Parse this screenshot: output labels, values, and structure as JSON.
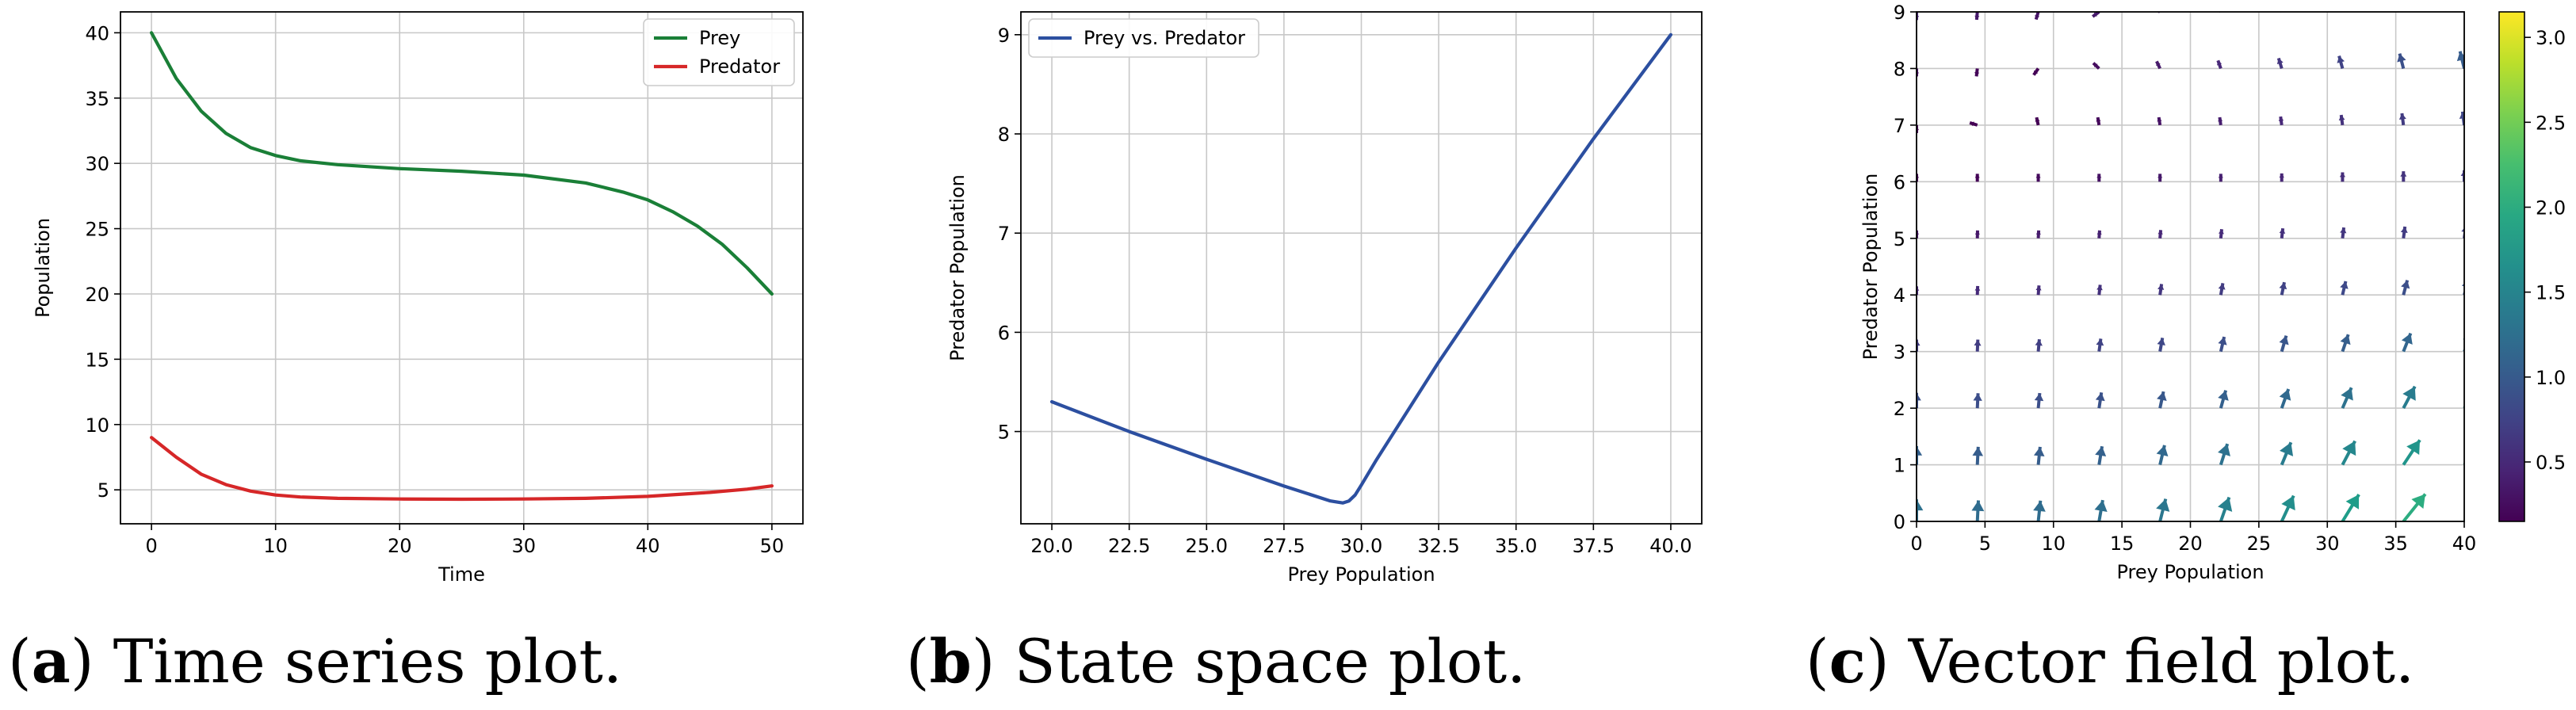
{
  "captions": {
    "a": {
      "label": "a",
      "text": "Time series plot."
    },
    "b": {
      "label": "b",
      "text": "State space plot."
    },
    "c": {
      "label": "c",
      "text": "Vector field plot."
    }
  },
  "colors": {
    "prey": "#1a7f37",
    "predator": "#d62728",
    "phase": "#2c4fa0",
    "grid": "#c8c8c8"
  },
  "chart_data": [
    {
      "id": "a",
      "type": "line",
      "xlabel": "Time",
      "ylabel": "Population",
      "xlim": [
        -2.5,
        52.5
      ],
      "ylim": [
        2.4,
        41.6
      ],
      "xticks": [
        0,
        10,
        20,
        30,
        40,
        50
      ],
      "yticks": [
        5,
        10,
        15,
        20,
        25,
        30,
        35,
        40
      ],
      "grid": true,
      "legend": "top-right",
      "series": [
        {
          "name": "Prey",
          "color": "#1a7f37",
          "x": [
            0,
            2,
            4,
            6,
            8,
            10,
            12,
            15,
            20,
            25,
            30,
            35,
            38,
            40,
            42,
            44,
            46,
            48,
            50
          ],
          "y": [
            40,
            36.5,
            34.0,
            32.3,
            31.2,
            30.6,
            30.2,
            29.9,
            29.6,
            29.4,
            29.1,
            28.5,
            27.8,
            27.2,
            26.3,
            25.2,
            23.8,
            22.0,
            20.0
          ]
        },
        {
          "name": "Predator",
          "color": "#d62728",
          "x": [
            0,
            2,
            4,
            6,
            8,
            10,
            12,
            15,
            20,
            25,
            30,
            35,
            40,
            45,
            48,
            50
          ],
          "y": [
            9.0,
            7.5,
            6.2,
            5.4,
            4.9,
            4.6,
            4.45,
            4.35,
            4.3,
            4.28,
            4.3,
            4.35,
            4.5,
            4.8,
            5.05,
            5.3
          ]
        }
      ]
    },
    {
      "id": "b",
      "type": "line",
      "xlabel": "Prey Population",
      "ylabel": "Predator Population",
      "xlim": [
        19.0,
        41.0
      ],
      "ylim": [
        4.07,
        9.23
      ],
      "xticks": [
        "20.0",
        "22.5",
        "25.0",
        "27.5",
        "30.0",
        "32.5",
        "35.0",
        "37.5",
        "40.0"
      ],
      "yticks": [
        "5",
        "6",
        "7",
        "8",
        "9"
      ],
      "grid": true,
      "legend": "top-left",
      "series": [
        {
          "name": "Prey vs. Predator",
          "color": "#2c4fa0",
          "x": [
            20.0,
            22.5,
            25.0,
            27.5,
            29.0,
            29.4,
            29.6,
            29.8,
            30.0,
            30.5,
            32.5,
            35.0,
            37.5,
            40.0
          ],
          "y": [
            5.3,
            5.0,
            4.72,
            4.45,
            4.3,
            4.28,
            4.3,
            4.36,
            4.46,
            4.72,
            5.7,
            6.85,
            7.95,
            9.0
          ]
        }
      ]
    },
    {
      "id": "c",
      "type": "quiver",
      "xlabel": "Prey Population",
      "ylabel": "Predator Population",
      "xlim": [
        0,
        40
      ],
      "ylim": [
        0,
        9
      ],
      "xticks": [
        0,
        5,
        10,
        15,
        20,
        25,
        30,
        35,
        40
      ],
      "yticks": [
        0,
        1,
        2,
        3,
        4,
        5,
        6,
        7,
        8,
        9
      ],
      "grid": true,
      "colorbar": {
        "colormap": "viridis",
        "range": [
          0.15,
          3.15
        ],
        "ticks": [
          "0.5",
          "1.0",
          "1.5",
          "2.0",
          "2.5",
          "3.0"
        ]
      },
      "vector_grid": {
        "x": [
          0,
          4.44,
          8.89,
          13.33,
          17.78,
          22.22,
          26.67,
          31.11,
          35.56,
          40
        ],
        "y": [
          0,
          1,
          2,
          3,
          4,
          5,
          6,
          7,
          8,
          9
        ]
      }
    }
  ]
}
